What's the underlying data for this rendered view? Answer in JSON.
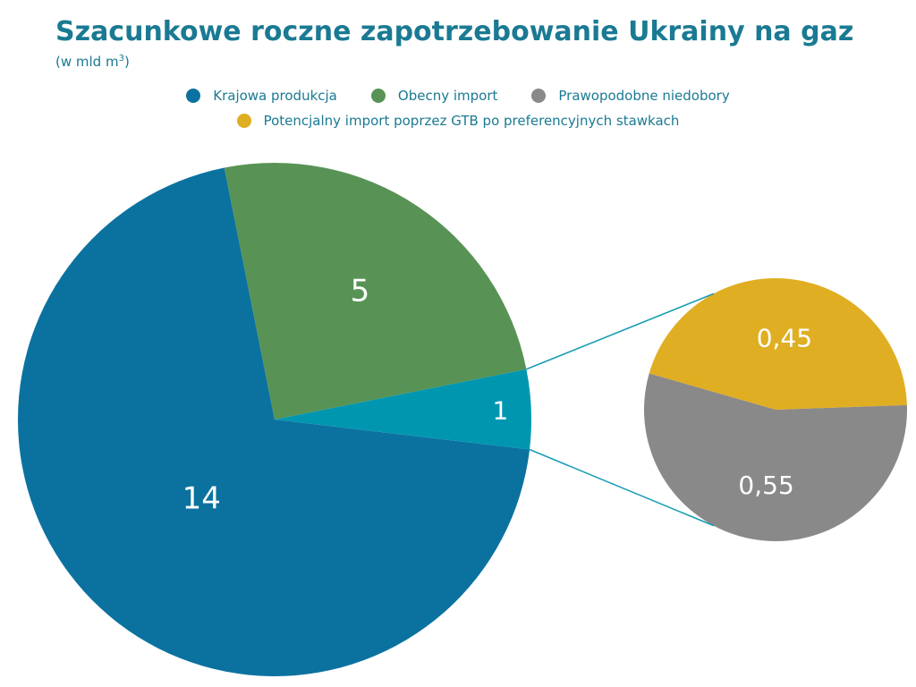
{
  "chart_data": {
    "type": "pie",
    "title": "Szacunkowe roczne zapotrzebowanie Ukrainy na gaz",
    "subtitle_prefix": "(w mld m",
    "subtitle_sup": "3",
    "subtitle_suffix": ")",
    "legend_placement": "top",
    "legend": [
      {
        "label": "Krajowa produkcja",
        "color": "#0b72a0"
      },
      {
        "label": "Obecny import",
        "color": "#589355"
      },
      {
        "label": "Prawopodobne niedobory",
        "color": "#8a8989"
      },
      {
        "label": "Potencjalny import poprzez GTB po preferencyjnych stawkach",
        "color": "#e0ae22"
      }
    ],
    "main_pie": {
      "slices": [
        {
          "label": "14",
          "value": 14,
          "color": "#0b72a0"
        },
        {
          "label": "5",
          "value": 5,
          "color": "#589355"
        },
        {
          "label": "1",
          "value": 1,
          "color": "#0096b0"
        }
      ]
    },
    "secondary_pie": {
      "slices": [
        {
          "label": "0,45",
          "value": 0.45,
          "color": "#e0ae22"
        },
        {
          "label": "0,55",
          "value": 0.55,
          "color": "#8a8989"
        }
      ]
    },
    "connector_color": "#1a9db5"
  }
}
